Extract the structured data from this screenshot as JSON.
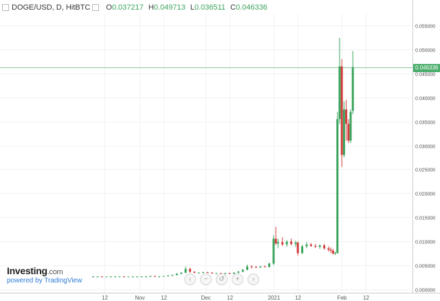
{
  "header": {
    "symbol": "DOGE/USD, D, HitBTC",
    "o_key": "O",
    "o_val": "0.037217",
    "h_key": "H",
    "h_val": "0.049713",
    "l_key": "L",
    "l_val": "0.036511",
    "c_key": "C",
    "c_val": "0.046336"
  },
  "brand": {
    "name": "Investing",
    "suffix": ".com",
    "powered": "powered by TradingView"
  },
  "last_price_label": "0.046336",
  "zoom_controls": [
    "‹",
    "−",
    "↺",
    "+",
    "›"
  ],
  "colors": {
    "up": "#3aa35b",
    "down": "#d23c3c",
    "price_line": "#86c79a",
    "grid": "#eef1f4"
  },
  "chart_data": {
    "type": "candlestick",
    "y_ticks": [
      "0.055000",
      "0.050000",
      "0.045000",
      "0.040000",
      "0.035000",
      "0.030000",
      "0.025000",
      "0.020000",
      "0.015000",
      "0.010000",
      "0.005000",
      "0.000000"
    ],
    "y_tick_values": [
      0.055,
      0.05,
      0.045,
      0.04,
      0.035,
      0.03,
      0.025,
      0.02,
      0.015,
      0.01,
      0.005,
      0
    ],
    "ylim": [
      -0.0005,
      0.0575
    ],
    "x_ticks": [
      {
        "label": "12",
        "day": -77
      },
      {
        "label": "Nov",
        "day": -61
      },
      {
        "label": "12",
        "day": -50
      },
      {
        "label": "Dec",
        "day": -31
      },
      {
        "label": "12",
        "day": -20
      },
      {
        "label": "2021",
        "day": 0
      },
      {
        "label": "12",
        "day": 11
      },
      {
        "label": "Feb",
        "day": 31
      },
      {
        "label": "12",
        "day": 42
      }
    ],
    "last_price": 0.046336,
    "candles": [
      [
        -82,
        0.0026,
        0.0027,
        0.0025,
        0.0026
      ],
      [
        -80,
        0.0026,
        0.0027,
        0.0025,
        0.0026
      ],
      [
        -78,
        0.0026,
        0.0027,
        0.0025,
        0.0025
      ],
      [
        -76,
        0.0025,
        0.0026,
        0.0025,
        0.0026
      ],
      [
        -74,
        0.0026,
        0.0027,
        0.0025,
        0.0026
      ],
      [
        -72,
        0.0026,
        0.0027,
        0.0025,
        0.0026
      ],
      [
        -70,
        0.0026,
        0.0027,
        0.0025,
        0.0026
      ],
      [
        -68,
        0.0026,
        0.0027,
        0.0025,
        0.0025
      ],
      [
        -66,
        0.0025,
        0.0026,
        0.0025,
        0.0026
      ],
      [
        -64,
        0.0026,
        0.0027,
        0.0025,
        0.0026
      ],
      [
        -62,
        0.0026,
        0.0027,
        0.0026,
        0.0026
      ],
      [
        -60,
        0.0026,
        0.0027,
        0.0025,
        0.0026
      ],
      [
        -58,
        0.0026,
        0.0027,
        0.0025,
        0.0026
      ],
      [
        -56,
        0.0026,
        0.0028,
        0.0025,
        0.0027
      ],
      [
        -54,
        0.0027,
        0.0028,
        0.0026,
        0.0026
      ],
      [
        -52,
        0.0026,
        0.0027,
        0.0025,
        0.0026
      ],
      [
        -50,
        0.0026,
        0.0027,
        0.0026,
        0.0027
      ],
      [
        -48,
        0.0027,
        0.0029,
        0.0026,
        0.0028
      ],
      [
        -46,
        0.0028,
        0.003,
        0.0027,
        0.0029
      ],
      [
        -44,
        0.0029,
        0.0033,
        0.0028,
        0.0032
      ],
      [
        -42,
        0.0032,
        0.0035,
        0.0031,
        0.0034
      ],
      [
        -40,
        0.0034,
        0.0047,
        0.0033,
        0.0042
      ],
      [
        -38,
        0.0042,
        0.0044,
        0.0034,
        0.0036
      ],
      [
        -36,
        0.0036,
        0.0037,
        0.0033,
        0.0034
      ],
      [
        -34,
        0.0034,
        0.0035,
        0.0033,
        0.0034
      ],
      [
        -32,
        0.0034,
        0.0036,
        0.0033,
        0.0035
      ],
      [
        -30,
        0.0035,
        0.0036,
        0.0033,
        0.0034
      ],
      [
        -28,
        0.0034,
        0.0035,
        0.0032,
        0.0033
      ],
      [
        -26,
        0.0033,
        0.0034,
        0.0032,
        0.0033
      ],
      [
        -24,
        0.0033,
        0.0034,
        0.0031,
        0.0032
      ],
      [
        -22,
        0.0032,
        0.0034,
        0.0031,
        0.0033
      ],
      [
        -20,
        0.0033,
        0.0034,
        0.0031,
        0.0032
      ],
      [
        -18,
        0.0032,
        0.0035,
        0.0031,
        0.0034
      ],
      [
        -16,
        0.0034,
        0.0038,
        0.0033,
        0.0036
      ],
      [
        -14,
        0.0036,
        0.0042,
        0.0035,
        0.004
      ],
      [
        -12,
        0.004,
        0.0051,
        0.0039,
        0.0047
      ],
      [
        -10,
        0.0047,
        0.005,
        0.0043,
        0.0046
      ],
      [
        -8,
        0.0046,
        0.0048,
        0.0044,
        0.0045
      ],
      [
        -6,
        0.0045,
        0.0048,
        0.0044,
        0.0047
      ],
      [
        -4,
        0.0047,
        0.0049,
        0.0045,
        0.0046
      ],
      [
        -2,
        0.0046,
        0.0055,
        0.0045,
        0.0053
      ],
      [
        0,
        0.0053,
        0.0112,
        0.005,
        0.0105
      ],
      [
        1,
        0.0105,
        0.013,
        0.0092,
        0.0095
      ],
      [
        2,
        0.0095,
        0.0105,
        0.0085,
        0.0098
      ],
      [
        4,
        0.0098,
        0.0108,
        0.009,
        0.0093
      ],
      [
        6,
        0.0093,
        0.0102,
        0.0088,
        0.0099
      ],
      [
        8,
        0.0099,
        0.0105,
        0.0091,
        0.0094
      ],
      [
        10,
        0.0094,
        0.0101,
        0.0088,
        0.0097
      ],
      [
        11,
        0.0097,
        0.0099,
        0.007,
        0.0075
      ],
      [
        13,
        0.0075,
        0.0092,
        0.0073,
        0.0089
      ],
      [
        15,
        0.0089,
        0.0098,
        0.0085,
        0.0093
      ],
      [
        17,
        0.0093,
        0.0096,
        0.0088,
        0.009
      ],
      [
        19,
        0.009,
        0.0094,
        0.0086,
        0.0088
      ],
      [
        21,
        0.0088,
        0.0093,
        0.0084,
        0.0091
      ],
      [
        23,
        0.0091,
        0.0094,
        0.0082,
        0.0085
      ],
      [
        25,
        0.0085,
        0.0089,
        0.0078,
        0.0082
      ],
      [
        26,
        0.0082,
        0.0087,
        0.0075,
        0.008
      ],
      [
        27,
        0.008,
        0.0084,
        0.0072,
        0.0074
      ],
      [
        28,
        0.0074,
        0.0078,
        0.0071,
        0.0075
      ],
      [
        29,
        0.0075,
        0.037,
        0.0074,
        0.0355
      ],
      [
        30,
        0.0355,
        0.0525,
        0.0345,
        0.0465
      ],
      [
        31,
        0.0465,
        0.048,
        0.0255,
        0.028
      ],
      [
        32,
        0.028,
        0.0392,
        0.0275,
        0.0375
      ],
      [
        33,
        0.0375,
        0.0395,
        0.031,
        0.0345
      ],
      [
        34,
        0.0345,
        0.0355,
        0.0305,
        0.031
      ],
      [
        35,
        0.031,
        0.0375,
        0.0305,
        0.037
      ],
      [
        36,
        0.037217,
        0.049713,
        0.036511,
        0.046336
      ]
    ]
  }
}
